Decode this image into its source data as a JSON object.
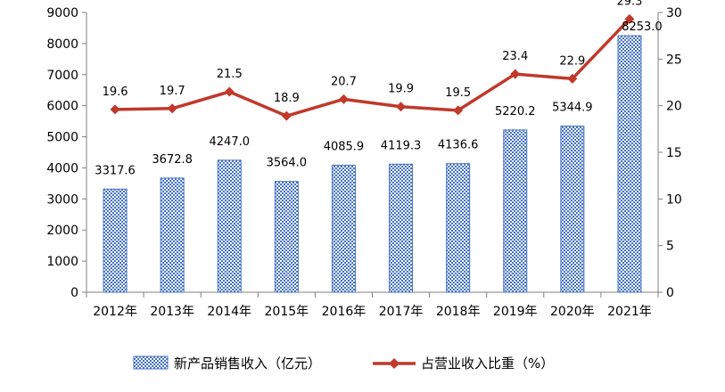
{
  "chart_data": {
    "type": "bar+line",
    "categories": [
      "2012年",
      "2013年",
      "2014年",
      "2015年",
      "2016年",
      "2017年",
      "2018年",
      "2019年",
      "2020年",
      "2021年"
    ],
    "series": [
      {
        "name": "新产品销售收入（亿元）",
        "type": "bar",
        "axis": "left",
        "color": "#4472C4",
        "values": [
          3317.6,
          3672.8,
          4247.0,
          3564.0,
          4085.9,
          4119.3,
          4136.6,
          5220.2,
          5344.9,
          8253.0
        ],
        "labels": [
          "3317.6",
          "3672.8",
          "4247.0",
          "3564.0",
          "4085.9",
          "4119.3",
          "4136.6",
          "5220.2",
          "5344.9",
          "8253.0"
        ]
      },
      {
        "name": "占营业收入比重（%）",
        "type": "line",
        "axis": "right",
        "color": "#C0392B",
        "values": [
          19.6,
          19.7,
          21.5,
          18.9,
          20.7,
          19.9,
          19.5,
          23.4,
          22.9,
          29.3
        ],
        "labels": [
          "19.6",
          "19.7",
          "21.5",
          "18.9",
          "20.7",
          "19.9",
          "19.5",
          "23.4",
          "22.9",
          "29.3"
        ]
      }
    ],
    "left_axis": {
      "ylim": [
        0,
        9000
      ],
      "ticks": [
        "0",
        "1000",
        "2000",
        "3000",
        "4000",
        "5000",
        "6000",
        "7000",
        "8000",
        "9000"
      ]
    },
    "right_axis": {
      "ylim": [
        0,
        30
      ],
      "ticks": [
        "0",
        "5",
        "10",
        "15",
        "20",
        "25",
        "30"
      ]
    },
    "legend": {
      "position": "bottom"
    },
    "grid": false
  }
}
